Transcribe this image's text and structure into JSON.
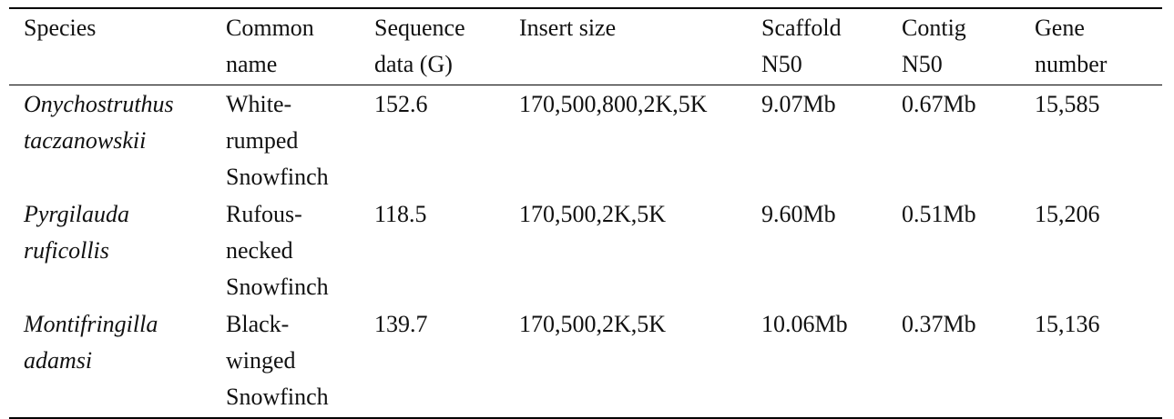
{
  "table": {
    "headers": [
      [
        "Species"
      ],
      [
        "Common",
        "name"
      ],
      [
        "Sequence",
        "data (G)"
      ],
      [
        "Insert size"
      ],
      [
        "Scaffold",
        "N50"
      ],
      [
        "Contig",
        "N50"
      ],
      [
        "Gene",
        "number"
      ]
    ],
    "rows": [
      {
        "species": [
          "Onychostruthus",
          "taczanowskii"
        ],
        "common_name": [
          "White-",
          "rumped",
          "Snowfinch"
        ],
        "sequence_data": "152.6",
        "insert_size": "170,500,800,2K,5K",
        "scaffold_n50": "9.07Mb",
        "contig_n50": "0.67Mb",
        "gene_number": "15,585"
      },
      {
        "species": [
          "Pyrgilauda",
          "ruficollis"
        ],
        "common_name": [
          "Rufous-",
          "necked",
          "Snowfinch"
        ],
        "sequence_data": "118.5",
        "insert_size": "170,500,2K,5K",
        "scaffold_n50": "9.60Mb",
        "contig_n50": "0.51Mb",
        "gene_number": "15,206"
      },
      {
        "species": [
          "Montifringilla",
          "adamsi"
        ],
        "common_name": [
          "Black-",
          "winged",
          "Snowfinch"
        ],
        "sequence_data": "139.7",
        "insert_size": "170,500,2K,5K",
        "scaffold_n50": "10.06Mb",
        "contig_n50": "0.37Mb",
        "gene_number": "15,136"
      }
    ]
  }
}
